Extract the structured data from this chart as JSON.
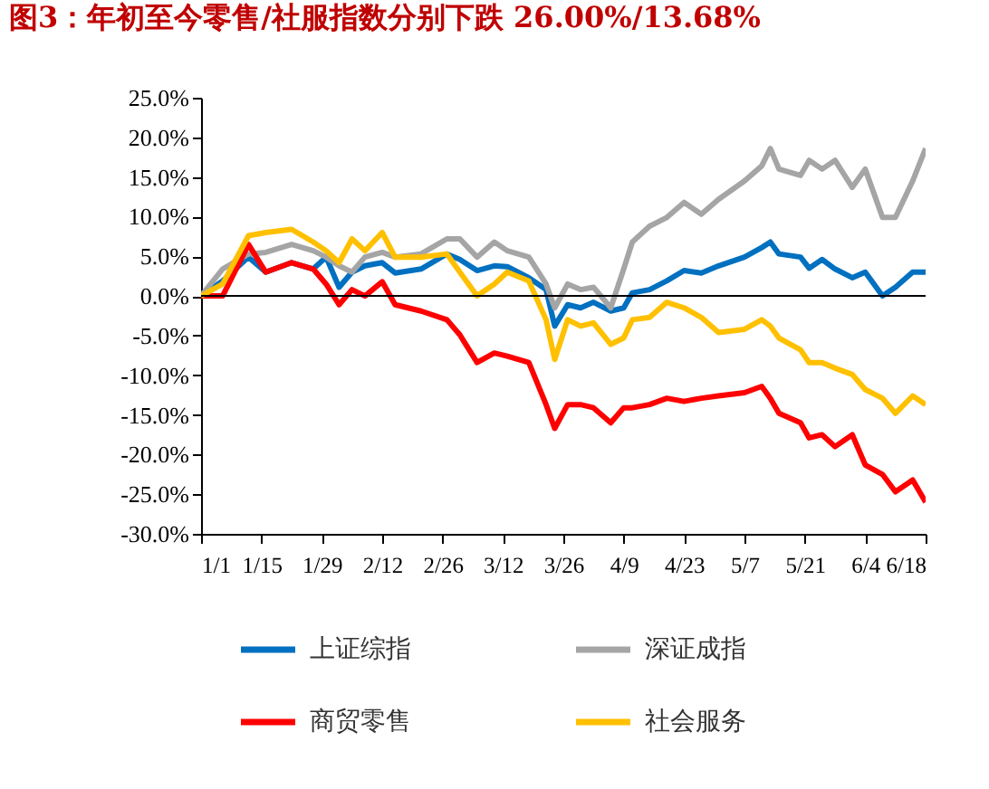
{
  "chart_data": {
    "type": "line",
    "title": "图3：年初至今零售/社服指数分别下跌 26.00%/13.68%",
    "x": [
      "--01-01",
      "--01-06",
      "--01-12",
      "--01-16",
      "--01-22",
      "--01-27",
      "--01-30",
      "--02-02",
      "--02-05",
      "--02-08",
      "--02-12",
      "--02-15",
      "--02-21",
      "--02-27",
      "--03-02",
      "--03-06",
      "--03-10",
      "--03-13",
      "--03-18",
      "--03-22",
      "--03-24",
      "--03-27",
      "--03-30",
      "--04-02",
      "--04-06",
      "--04-09",
      "--04-11",
      "--04-15",
      "--04-19",
      "--04-23",
      "--04-27",
      "--05-01",
      "--05-07",
      "--05-11",
      "--05-13",
      "--05-15",
      "--05-20",
      "--05-22",
      "--05-25",
      "--05-28",
      "--06-01",
      "--06-04",
      "--06-08",
      "--06-11",
      "--06-15",
      "--06-18"
    ],
    "series": [
      {
        "name": "上证综指",
        "color": "#0070c0",
        "values": [
          0,
          1.9,
          4.9,
          3.0,
          4.2,
          3.4,
          4.9,
          1.1,
          3.0,
          3.8,
          4.2,
          2.9,
          3.4,
          5.3,
          4.6,
          3.2,
          3.8,
          3.7,
          2.3,
          0.8,
          -3.8,
          -1.1,
          -1.5,
          -0.8,
          -1.9,
          -1.5,
          0.4,
          0.8,
          1.9,
          3.2,
          2.9,
          3.8,
          4.9,
          6.1,
          6.8,
          5.3,
          4.9,
          3.5,
          4.6,
          3.4,
          2.3,
          3.0,
          0,
          1.1,
          3.0,
          3.0
        ]
      },
      {
        "name": "深证成指",
        "color": "#a5a5a5",
        "values": [
          0,
          3.4,
          5.3,
          5.5,
          6.5,
          5.7,
          4.9,
          3.8,
          3.0,
          4.9,
          5.5,
          4.9,
          5.3,
          7.2,
          7.2,
          4.9,
          6.8,
          5.7,
          4.9,
          1.5,
          -1.5,
          1.5,
          0.8,
          1.1,
          -1.5,
          3.4,
          6.8,
          8.8,
          9.9,
          11.8,
          10.3,
          12.2,
          14.5,
          16.4,
          18.6,
          16.0,
          15.2,
          17.1,
          16.0,
          17.1,
          13.7,
          16.0,
          9.9,
          9.9,
          14.5,
          18.6
        ]
      },
      {
        "name": "商贸零售",
        "color": "#ff0000",
        "values": [
          0,
          0,
          6.5,
          3.0,
          4.2,
          3.4,
          1.5,
          -1.1,
          0.8,
          0,
          1.8,
          -1.1,
          -1.9,
          -3.0,
          -4.9,
          -8.4,
          -7.2,
          -7.6,
          -8.4,
          -13.7,
          -16.7,
          -13.7,
          -13.7,
          -14.1,
          -16.0,
          -14.1,
          -14.1,
          -13.7,
          -12.9,
          -13.3,
          -12.9,
          -12.6,
          -12.2,
          -11.4,
          -12.9,
          -14.8,
          -16.0,
          -17.9,
          -17.5,
          -19.0,
          -17.5,
          -21.3,
          -22.5,
          -24.7,
          -23.2,
          -26.0
        ]
      },
      {
        "name": "社会服务",
        "color": "#ffc000",
        "values": [
          0,
          1.5,
          7.6,
          8.0,
          8.4,
          6.8,
          5.7,
          4.2,
          7.2,
          5.7,
          8.0,
          4.9,
          4.9,
          5.3,
          3.0,
          0,
          1.5,
          3.0,
          1.9,
          -3.0,
          -8.0,
          -3.0,
          -3.8,
          -3.4,
          -6.1,
          -5.3,
          -3.0,
          -2.7,
          -0.8,
          -1.5,
          -2.7,
          -4.6,
          -4.2,
          -3.0,
          -3.8,
          -5.3,
          -6.8,
          -8.4,
          -8.4,
          -9.1,
          -9.9,
          -11.8,
          -12.9,
          -14.8,
          -12.6,
          -13.7
        ]
      }
    ],
    "xlim": [
      "--01-01",
      "--06-18"
    ],
    "xticks": [
      {
        "value": "--01-01",
        "label": "1/1"
      },
      {
        "value": "--01-15",
        "label": "1/15"
      },
      {
        "value": "--01-29",
        "label": "1/29"
      },
      {
        "value": "--02-12",
        "label": "2/12"
      },
      {
        "value": "--02-26",
        "label": "2/26"
      },
      {
        "value": "--03-12",
        "label": "3/12"
      },
      {
        "value": "--03-26",
        "label": "3/26"
      },
      {
        "value": "--04-09",
        "label": "4/9"
      },
      {
        "value": "--04-23",
        "label": "4/23"
      },
      {
        "value": "--05-07",
        "label": "5/7"
      },
      {
        "value": "--05-21",
        "label": "5/21"
      },
      {
        "value": "--06-04",
        "label": "6/4"
      },
      {
        "value": "--06-18",
        "label": "6/18"
      }
    ],
    "ylim": [
      -30,
      25
    ],
    "yticks": [
      {
        "value": -30,
        "label": "-30.0%"
      },
      {
        "value": -25,
        "label": "-25.0%"
      },
      {
        "value": -20,
        "label": "-20.0%"
      },
      {
        "value": -15,
        "label": "-15.0%"
      },
      {
        "value": -10,
        "label": "-10.0%"
      },
      {
        "value": -5,
        "label": "-5.0%"
      },
      {
        "value": 0,
        "label": "0.0%"
      },
      {
        "value": 5,
        "label": "5.0%"
      },
      {
        "value": 10,
        "label": "10.0%"
      },
      {
        "value": 15,
        "label": "15.0%"
      },
      {
        "value": 20,
        "label": "20.0%"
      },
      {
        "value": 25,
        "label": "25.0%"
      }
    ],
    "ref_lines": [
      {
        "axis": "y",
        "value": 0,
        "color": "#000000"
      }
    ],
    "grid": false,
    "legend": "bottom",
    "marker": "none",
    "line_style": "solid"
  }
}
